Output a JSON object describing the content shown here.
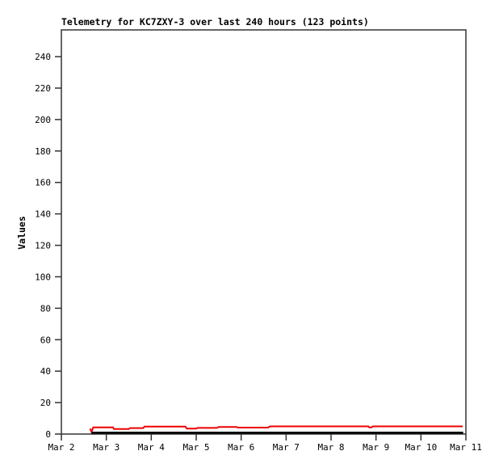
{
  "window": {
    "background": "#ffffff"
  },
  "chart_data": {
    "type": "line",
    "title": "Telemetry for KC7ZXY-3 over last 240 hours (123 points)",
    "xlabel": "",
    "ylabel": "Values",
    "x_unit": "days after Mar 2",
    "xlim": [
      0,
      9
    ],
    "ylim": [
      0,
      257
    ],
    "grid": false,
    "legend": "none",
    "axis_color": "#333333",
    "text_color": "#000000",
    "x_ticks": [
      {
        "day": 0,
        "label": "Mar 2"
      },
      {
        "day": 1,
        "label": "Mar 3"
      },
      {
        "day": 2,
        "label": "Mar 4"
      },
      {
        "day": 3,
        "label": "Mar 5"
      },
      {
        "day": 4,
        "label": "Mar 6"
      },
      {
        "day": 5,
        "label": "Mar 7"
      },
      {
        "day": 6,
        "label": "Mar 8"
      },
      {
        "day": 7,
        "label": "Mar 9"
      },
      {
        "day": 8,
        "label": "Mar 10"
      },
      {
        "day": 9,
        "label": "Mar 11"
      }
    ],
    "y_ticks": [
      0,
      20,
      40,
      60,
      80,
      100,
      120,
      140,
      160,
      180,
      200,
      220,
      240
    ],
    "series": [
      {
        "name": "telemetry-series-red",
        "color": "#ee0000",
        "width": 2,
        "points": [
          [
            0.64,
            3.5
          ],
          [
            0.67,
            1.4
          ],
          [
            0.71,
            4.2
          ],
          [
            1.15,
            4.2
          ],
          [
            1.17,
            3.2
          ],
          [
            1.5,
            3.2
          ],
          [
            1.53,
            3.8
          ],
          [
            1.82,
            3.8
          ],
          [
            1.85,
            4.8
          ],
          [
            2.76,
            4.8
          ],
          [
            2.79,
            3.5
          ],
          [
            3.0,
            3.5
          ],
          [
            3.03,
            3.9
          ],
          [
            3.46,
            3.9
          ],
          [
            3.5,
            4.5
          ],
          [
            3.9,
            4.5
          ],
          [
            3.93,
            4.1
          ],
          [
            4.6,
            4.1
          ],
          [
            4.64,
            4.9
          ],
          [
            6.83,
            4.9
          ],
          [
            6.85,
            4.2
          ],
          [
            6.9,
            4.2
          ],
          [
            6.93,
            4.9
          ],
          [
            8.93,
            4.9
          ]
        ]
      },
      {
        "name": "telemetry-series-black",
        "color": "#000000",
        "width": 2.5,
        "points": [
          [
            0.67,
            0.8
          ],
          [
            8.94,
            0.8
          ]
        ]
      }
    ]
  }
}
